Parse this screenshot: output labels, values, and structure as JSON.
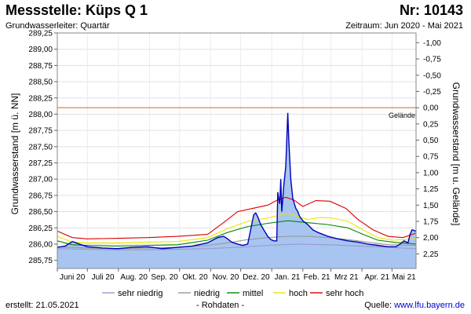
{
  "header": {
    "title": "Messstelle: Küps Q 1",
    "number": "Nr: 10143",
    "subtitle": "Grundwasserleiter: Quartär",
    "period": "Zeitraum: Jun 2020 - Mai 2021"
  },
  "footer": {
    "created_label": "erstellt:",
    "created_date": "21.05.2021",
    "raw_label": "- Rohdaten -",
    "source_label": "Quelle:",
    "source_link": "www.lfu.bayern.de"
  },
  "colors": {
    "area_fill": "#a7c5f0",
    "main_line": "#0000bb",
    "sehr_niedrig": "#9999cc",
    "niedrig": "#999999",
    "mittel": "#008800",
    "hoch": "#e6e600",
    "sehr_hoch": "#dd0000",
    "gelaende": "#e07040"
  },
  "chart_data": {
    "type": "line",
    "title": "Messstelle: Küps Q 1",
    "ylabel": "Grundwasserstand [m ü. NN]",
    "y2label": "Grundwasserstand [m u. Gelände]",
    "ylim": [
      285.625,
      289.25
    ],
    "xlim": [
      0,
      358
    ],
    "yticks": [
      "285,75",
      "286,00",
      "286,25",
      "286,50",
      "286,75",
      "287,00",
      "287,25",
      "287,50",
      "287,75",
      "288,00",
      "288,25",
      "288,50",
      "288,75",
      "289,00",
      "289,25"
    ],
    "ytick_values": [
      285.75,
      286.0,
      286.25,
      286.5,
      286.75,
      287.0,
      287.25,
      287.5,
      287.75,
      288.0,
      288.25,
      288.5,
      288.75,
      289.0,
      289.25
    ],
    "y2ticks": [
      "2,25",
      "2,00",
      "1,75",
      "1,50",
      "1,25",
      "1,00",
      "0,75",
      "0,50",
      "0,25",
      "0,00",
      "-0,25",
      "-0,50",
      "-0,75",
      "-1,00"
    ],
    "y2tick_values": [
      2.25,
      2.0,
      1.75,
      1.5,
      1.25,
      1.0,
      0.75,
      0.5,
      0.25,
      0.0,
      -0.25,
      -0.5,
      -0.75,
      -1.0
    ],
    "ground_level_m_nn": 288.1,
    "ground_label": "Gelände",
    "xtick_positions": [
      0,
      30,
      61,
      92,
      122,
      153,
      183,
      214,
      245,
      273,
      304,
      334
    ],
    "xticks": [
      "Juni 20",
      "Juli 20",
      "Aug. 20",
      "Sep. 20",
      "Okt. 20",
      "Nov. 20",
      "Dez. 20",
      "Jan. 21",
      "Feb. 21",
      "Mrz 21",
      "Apr. 21",
      "Mai 21"
    ],
    "legend": [
      {
        "key": "sehr_niedrig",
        "label": "sehr niedrig"
      },
      {
        "key": "niedrig",
        "label": "niedrig"
      },
      {
        "key": "mittel",
        "label": "mittel"
      },
      {
        "key": "hoch",
        "label": "hoch"
      },
      {
        "key": "sehr_hoch",
        "label": "sehr hoch"
      }
    ],
    "series": [
      {
        "name": "sehr hoch",
        "key": "sehr_hoch",
        "x": [
          0,
          15,
          30,
          60,
          90,
          120,
          150,
          165,
          180,
          195,
          210,
          220,
          228,
          236,
          245,
          258,
          272,
          288,
          300,
          315,
          330,
          345,
          358
        ],
        "y": [
          286.2,
          286.1,
          286.08,
          286.09,
          286.1,
          286.12,
          286.15,
          286.32,
          286.5,
          286.55,
          286.6,
          286.68,
          286.72,
          286.68,
          286.58,
          286.67,
          286.66,
          286.55,
          286.38,
          286.22,
          286.12,
          286.1,
          286.17
        ]
      },
      {
        "name": "hoch",
        "key": "hoch",
        "x": [
          0,
          15,
          30,
          60,
          90,
          120,
          150,
          170,
          190,
          210,
          225,
          232,
          240,
          250,
          262,
          275,
          290,
          305,
          320,
          335,
          358
        ],
        "y": [
          286.12,
          286.03,
          286.02,
          286.02,
          286.03,
          286.04,
          286.1,
          286.24,
          286.35,
          286.4,
          286.46,
          286.47,
          286.42,
          286.38,
          286.41,
          286.4,
          286.35,
          286.22,
          286.1,
          286.06,
          286.08
        ]
      },
      {
        "name": "mittel",
        "key": "mittel",
        "x": [
          0,
          15,
          30,
          60,
          90,
          120,
          150,
          170,
          190,
          210,
          230,
          250,
          270,
          290,
          305,
          320,
          335,
          358
        ],
        "y": [
          286.05,
          285.99,
          285.98,
          285.97,
          285.98,
          285.99,
          286.06,
          286.18,
          286.27,
          286.32,
          286.36,
          286.33,
          286.3,
          286.25,
          286.15,
          286.06,
          286.03,
          286.0
        ]
      },
      {
        "name": "niedrig",
        "key": "niedrig",
        "x": [
          0,
          30,
          60,
          90,
          120,
          150,
          170,
          190,
          210,
          230,
          250,
          270,
          290,
          310,
          330,
          358
        ],
        "y": [
          285.96,
          285.94,
          285.93,
          285.94,
          285.95,
          285.98,
          286.02,
          286.07,
          286.1,
          286.12,
          286.12,
          286.1,
          286.07,
          286.03,
          285.99,
          285.98
        ]
      },
      {
        "name": "sehr niedrig",
        "key": "sehr_niedrig",
        "x": [
          0,
          30,
          60,
          90,
          120,
          150,
          180,
          210,
          240,
          270,
          300,
          330,
          358
        ],
        "y": [
          285.93,
          285.92,
          285.91,
          285.91,
          285.92,
          285.93,
          285.95,
          285.98,
          286.0,
          285.99,
          285.97,
          285.95,
          285.93
        ]
      },
      {
        "name": "Rohdaten",
        "key": "main_line",
        "x": [
          0,
          8,
          15,
          22,
          30,
          45,
          60,
          75,
          90,
          105,
          120,
          135,
          150,
          160,
          166,
          170,
          174,
          180,
          185,
          190,
          196,
          198,
          200,
          203,
          206,
          210,
          213,
          216,
          219,
          220,
          221,
          222,
          223,
          224,
          226,
          228,
          230,
          231,
          233,
          235,
          238,
          240,
          242,
          245,
          250,
          255,
          260,
          270,
          280,
          290,
          300,
          310,
          320,
          330,
          338,
          342,
          346,
          350,
          352,
          354,
          358
        ],
        "y": [
          285.95,
          285.97,
          286.04,
          286.0,
          285.96,
          285.94,
          285.93,
          285.95,
          285.96,
          285.93,
          285.95,
          285.97,
          286.02,
          286.1,
          286.12,
          286.08,
          286.03,
          286.0,
          285.98,
          286.0,
          286.45,
          286.48,
          286.42,
          286.3,
          286.22,
          286.12,
          286.07,
          286.05,
          286.05,
          286.8,
          286.7,
          286.62,
          287.0,
          286.5,
          286.9,
          287.2,
          288.02,
          287.6,
          287.0,
          286.7,
          286.55,
          286.5,
          286.42,
          286.36,
          286.3,
          286.22,
          286.18,
          286.12,
          286.08,
          286.05,
          286.03,
          286.0,
          285.98,
          285.96,
          285.96,
          286.0,
          286.05,
          286.02,
          286.15,
          286.22,
          286.2
        ]
      }
    ]
  }
}
